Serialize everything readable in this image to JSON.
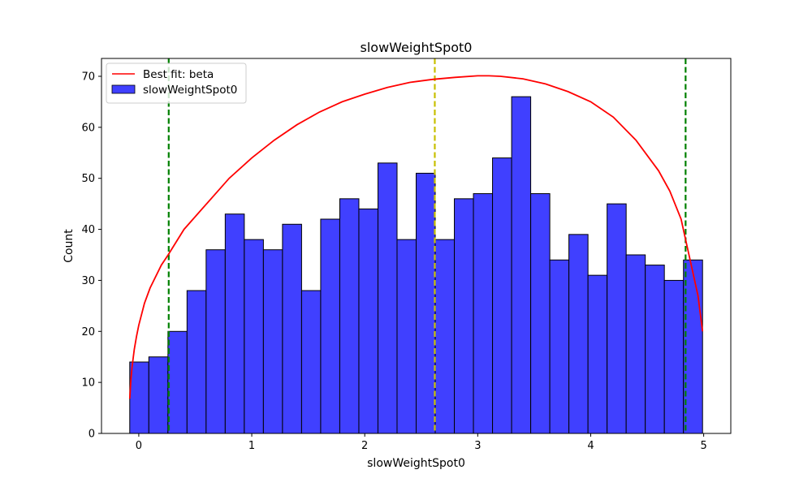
{
  "chart_data": {
    "type": "bar",
    "title": "slowWeightSpot0",
    "xlabel": "slowWeightSpot0",
    "ylabel": "Count",
    "xlim": [
      -0.33,
      5.24
    ],
    "ylim": [
      0,
      73.5
    ],
    "xticks": [
      0,
      1,
      2,
      3,
      4,
      5
    ],
    "yticks": [
      0,
      10,
      20,
      30,
      40,
      50,
      60,
      70
    ],
    "grid": false,
    "legend_position": "top-left",
    "bin_start": -0.08,
    "bin_width": 0.169,
    "counts": [
      14,
      15,
      20,
      28,
      36,
      43,
      38,
      36,
      41,
      28,
      42,
      46,
      44,
      53,
      38,
      51,
      38,
      46,
      47,
      54,
      66,
      47,
      34,
      39,
      31,
      45,
      35,
      33,
      30,
      34
    ],
    "series": [
      {
        "name": "Best fit: beta",
        "kind": "line",
        "color": "#ff0000",
        "x": [
          -0.08,
          -0.07,
          -0.06,
          -0.04,
          -0.02,
          0.0,
          0.05,
          0.1,
          0.2,
          0.26,
          0.4,
          0.6,
          0.8,
          1.0,
          1.2,
          1.4,
          1.6,
          1.8,
          2.0,
          2.2,
          2.4,
          2.6,
          2.8,
          3.0,
          3.1,
          3.2,
          3.4,
          3.6,
          3.8,
          4.0,
          4.2,
          4.4,
          4.6,
          4.7,
          4.8,
          4.84,
          4.9,
          4.95,
          4.97,
          4.99
        ],
        "y": [
          6.8,
          10.5,
          13.0,
          16.5,
          19.0,
          21.2,
          25.5,
          28.5,
          33.0,
          35.0,
          40.0,
          45.0,
          50.0,
          54.0,
          57.5,
          60.5,
          63.0,
          65.0,
          66.5,
          67.8,
          68.8,
          69.4,
          69.8,
          70.1,
          70.1,
          70.0,
          69.5,
          68.5,
          67.0,
          65.0,
          62.0,
          57.5,
          51.5,
          47.5,
          42.0,
          38.0,
          32.0,
          27.0,
          23.5,
          20.0
        ]
      },
      {
        "name": "slowWeightSpot0",
        "kind": "histogram",
        "color": "#0000ff"
      }
    ],
    "vlines": [
      {
        "x": 0.265,
        "color": "#008000",
        "style": "dashed"
      },
      {
        "x": 2.62,
        "color": "#c8c000",
        "style": "dashed"
      },
      {
        "x": 4.84,
        "color": "#008000",
        "style": "dashed"
      }
    ]
  }
}
